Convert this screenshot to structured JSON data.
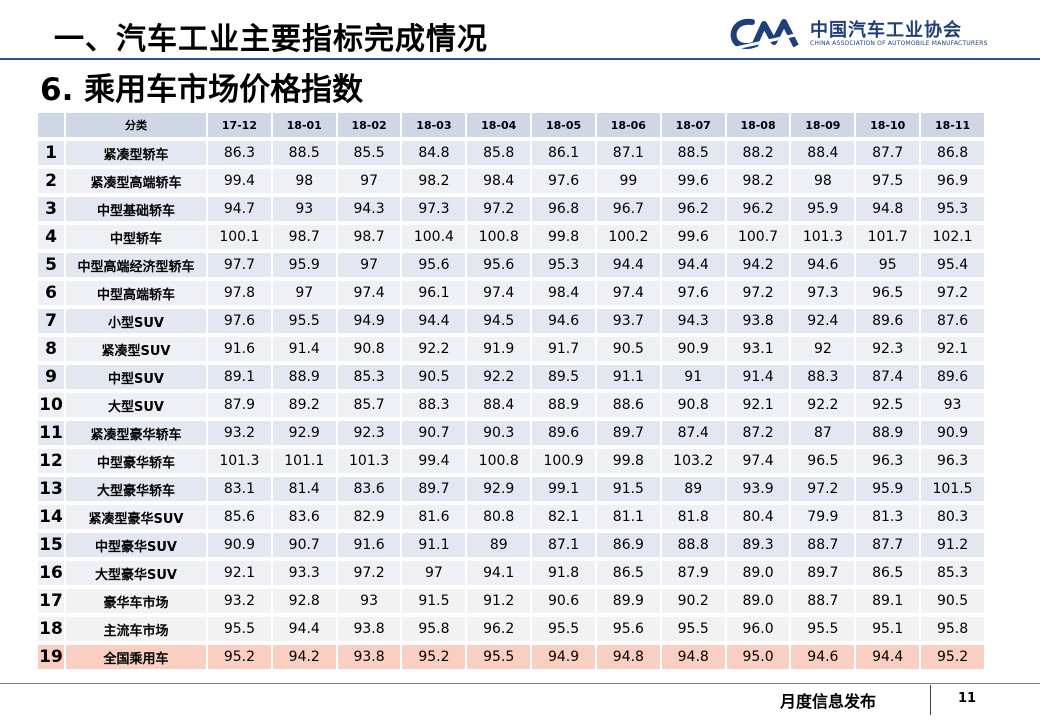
{
  "header": {
    "title": "一、汽车工业主要指标完成情况",
    "logo_cn": "中国汽车工业协会",
    "logo_en": "CHINA ASSOCIATION OF AUTOMOBILE MANUFACTURERS",
    "logo_color": "#1f3f7a"
  },
  "section_title": "6. 乘用车市场价格指数",
  "table": {
    "category_header": "分类",
    "months": [
      "17-12",
      "18-01",
      "18-02",
      "18-03",
      "18-04",
      "18-05",
      "18-06",
      "18-07",
      "18-08",
      "18-09",
      "18-10",
      "18-11"
    ],
    "rows": [
      {
        "no": "1",
        "name": "紧凑型轿车",
        "values": [
          "86.3",
          "88.5",
          "85.5",
          "84.8",
          "85.8",
          "86.1",
          "87.1",
          "88.5",
          "88.2",
          "88.4",
          "87.7",
          "86.8"
        ]
      },
      {
        "no": "2",
        "name": "紧凑型高端轿车",
        "values": [
          "99.4",
          "98",
          "97",
          "98.2",
          "98.4",
          "97.6",
          "99",
          "99.6",
          "98.2",
          "98",
          "97.5",
          "96.9"
        ]
      },
      {
        "no": "3",
        "name": "中型基础轿车",
        "values": [
          "94.7",
          "93",
          "94.3",
          "97.3",
          "97.2",
          "96.8",
          "96.7",
          "96.2",
          "96.2",
          "95.9",
          "94.8",
          "95.3"
        ]
      },
      {
        "no": "4",
        "name": "中型轿车",
        "values": [
          "100.1",
          "98.7",
          "98.7",
          "100.4",
          "100.8",
          "99.8",
          "100.2",
          "99.6",
          "100.7",
          "101.3",
          "101.7",
          "102.1"
        ]
      },
      {
        "no": "5",
        "name": "中型高端经济型轿车",
        "values": [
          "97.7",
          "95.9",
          "97",
          "95.6",
          "95.6",
          "95.3",
          "94.4",
          "94.4",
          "94.2",
          "94.6",
          "95",
          "95.4"
        ]
      },
      {
        "no": "6",
        "name": "中型高端轿车",
        "values": [
          "97.8",
          "97",
          "97.4",
          "96.1",
          "97.4",
          "98.4",
          "97.4",
          "97.6",
          "97.2",
          "97.3",
          "96.5",
          "97.2"
        ]
      },
      {
        "no": "7",
        "name": "小型SUV",
        "values": [
          "97.6",
          "95.5",
          "94.9",
          "94.4",
          "94.5",
          "94.6",
          "93.7",
          "94.3",
          "93.8",
          "92.4",
          "89.6",
          "87.6"
        ]
      },
      {
        "no": "8",
        "name": "紧凑型SUV",
        "values": [
          "91.6",
          "91.4",
          "90.8",
          "92.2",
          "91.9",
          "91.7",
          "90.5",
          "90.9",
          "93.1",
          "92",
          "92.3",
          "92.1"
        ]
      },
      {
        "no": "9",
        "name": "中型SUV",
        "values": [
          "89.1",
          "88.9",
          "85.3",
          "90.5",
          "92.2",
          "89.5",
          "91.1",
          "91",
          "91.4",
          "88.3",
          "87.4",
          "89.6"
        ]
      },
      {
        "no": "10",
        "name": "大型SUV",
        "values": [
          "87.9",
          "89.2",
          "85.7",
          "88.3",
          "88.4",
          "88.9",
          "88.6",
          "90.8",
          "92.1",
          "92.2",
          "92.5",
          "93"
        ]
      },
      {
        "no": "11",
        "name": "紧凑型豪华轿车",
        "values": [
          "93.2",
          "92.9",
          "92.3",
          "90.7",
          "90.3",
          "89.6",
          "89.7",
          "87.4",
          "87.2",
          "87",
          "88.9",
          "90.9"
        ]
      },
      {
        "no": "12",
        "name": "中型豪华轿车",
        "values": [
          "101.3",
          "101.1",
          "101.3",
          "99.4",
          "100.8",
          "100.9",
          "99.8",
          "103.2",
          "97.4",
          "96.5",
          "96.3",
          "96.3"
        ]
      },
      {
        "no": "13",
        "name": "大型豪华轿车",
        "values": [
          "83.1",
          "81.4",
          "83.6",
          "89.7",
          "92.9",
          "99.1",
          "91.5",
          "89",
          "93.9",
          "97.2",
          "95.9",
          "101.5"
        ]
      },
      {
        "no": "14",
        "name": "紧凑型豪华SUV",
        "values": [
          "85.6",
          "83.6",
          "82.9",
          "81.6",
          "80.8",
          "82.1",
          "81.1",
          "81.8",
          "80.4",
          "79.9",
          "81.3",
          "80.3"
        ]
      },
      {
        "no": "15",
        "name": "中型豪华SUV",
        "values": [
          "90.9",
          "90.7",
          "91.6",
          "91.1",
          "89",
          "87.1",
          "86.9",
          "88.8",
          "89.3",
          "88.7",
          "87.7",
          "91.2"
        ]
      },
      {
        "no": "16",
        "name": "大型豪华SUV",
        "values": [
          "92.1",
          "93.3",
          "97.2",
          "97",
          "94.1",
          "91.8",
          "86.5",
          "87.9",
          "89.0",
          "89.7",
          "86.5",
          "85.3"
        ]
      },
      {
        "no": "17",
        "name": "豪华车市场",
        "values": [
          "93.2",
          "92.8",
          "93",
          "91.5",
          "91.2",
          "90.6",
          "89.9",
          "90.2",
          "89.0",
          "88.7",
          "89.1",
          "90.5"
        ]
      },
      {
        "no": "18",
        "name": "主流车市场",
        "values": [
          "95.5",
          "94.4",
          "93.8",
          "95.8",
          "96.2",
          "95.5",
          "95.6",
          "95.5",
          "96.0",
          "95.5",
          "95.1",
          "95.8"
        ]
      },
      {
        "no": "19",
        "name": "全国乘用车",
        "values": [
          "95.2",
          "94.2",
          "93.8",
          "95.2",
          "95.5",
          "94.9",
          "94.8",
          "94.8",
          "95.0",
          "94.6",
          "94.4",
          "95.2"
        ]
      }
    ]
  },
  "footer": {
    "text": "月度信息发布",
    "page": "11"
  },
  "colors": {
    "header_row": "#cfd6e6",
    "row_a": "#e3e7f1",
    "row_b": "#eef0f6",
    "market_rows": "#f2f2f2",
    "national_row": "#f9cfc2"
  }
}
